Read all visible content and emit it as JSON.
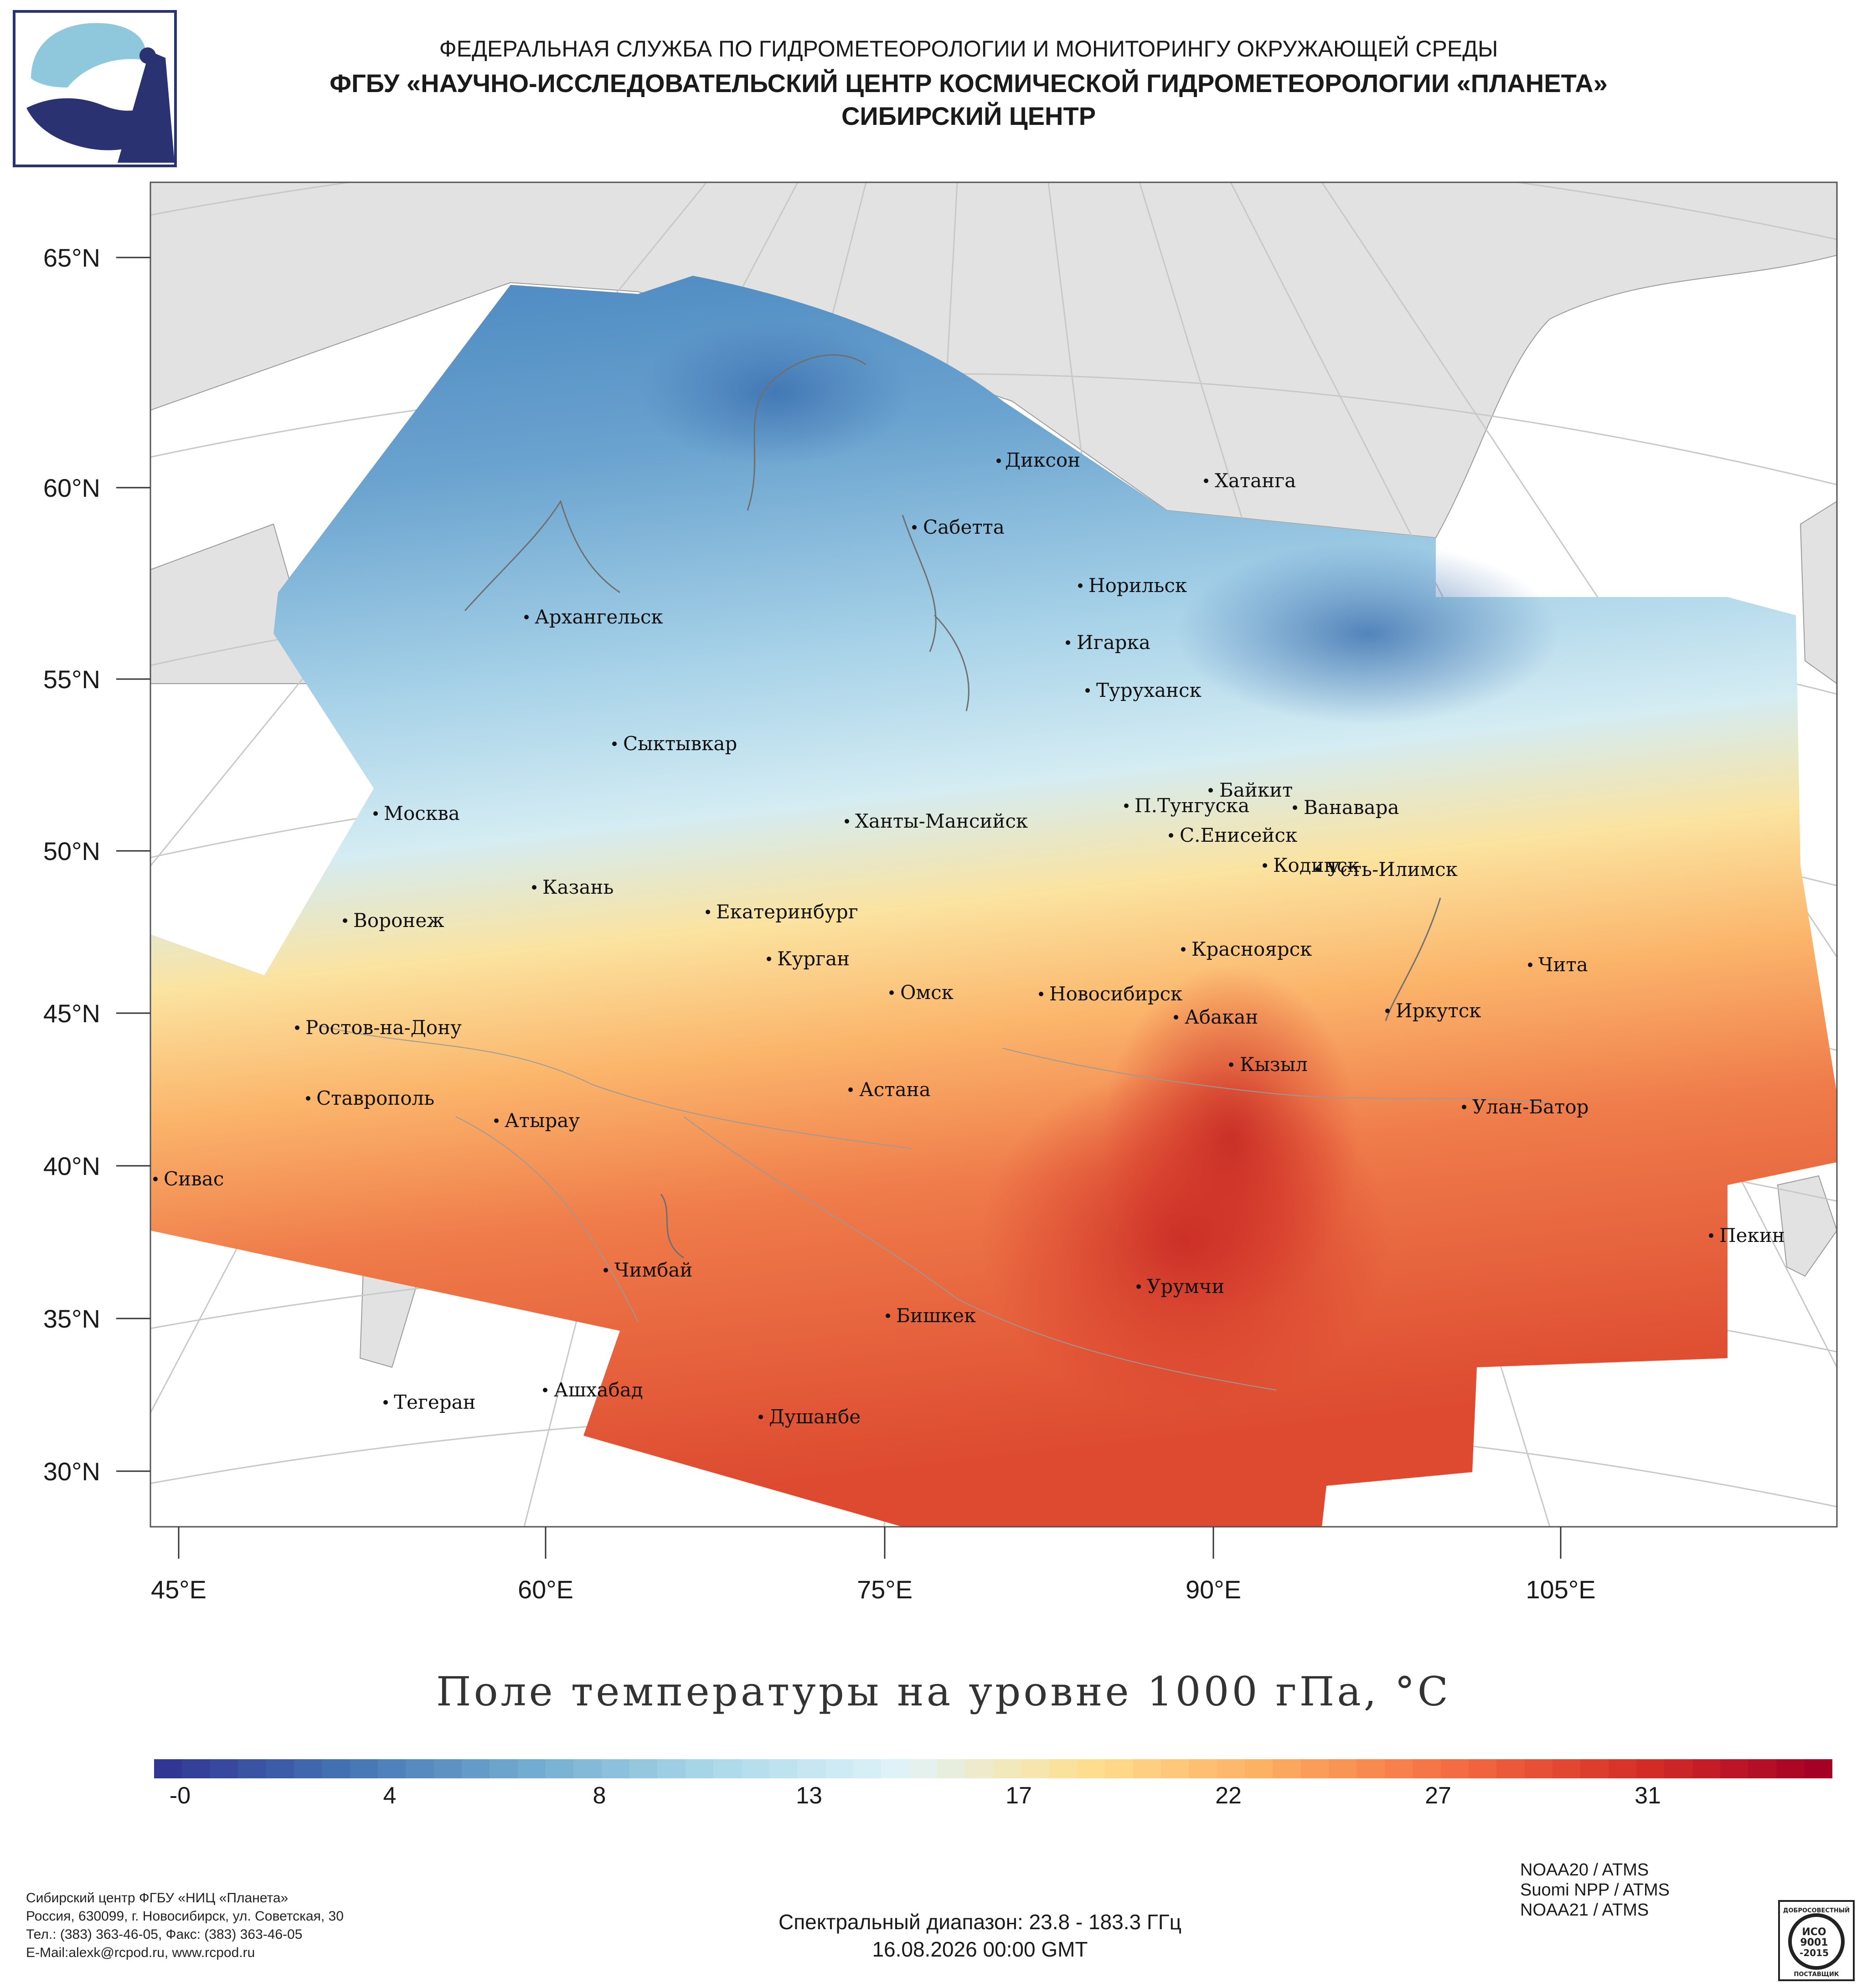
{
  "header": {
    "line1": "ФЕДЕРАЛЬНАЯ СЛУЖБА ПО ГИДРОМЕТЕОРОЛОГИИ И МОНИТОРИНГУ ОКРУЖАЮЩЕЙ СРЕДЫ",
    "line2": "ФГБУ «НАУЧНО-ИССЛЕДОВАТЕЛЬСКИЙ ЦЕНТР КОСМИЧЕСКОЙ ГИДРОМЕТЕОРОЛОГИИ «ПЛАНЕТА»",
    "line3": "СИБИРСКИЙ ЦЕНТР"
  },
  "map": {
    "title": "Поле температуры на уровне 1000 гПа, °C",
    "lat_labels": [
      "65°N",
      "60°N",
      "55°N",
      "50°N",
      "45°N",
      "40°N",
      "35°N",
      "30°N"
    ],
    "lon_labels": [
      "45°E",
      "60°E",
      "75°E",
      "90°E",
      "105°E"
    ],
    "cities": [
      {
        "name": "Диксон"
      },
      {
        "name": "Хатанга"
      },
      {
        "name": "Сабетта"
      },
      {
        "name": "Норильск"
      },
      {
        "name": "Архангельск"
      },
      {
        "name": "Игарка"
      },
      {
        "name": "Туруханск"
      },
      {
        "name": "Сыктывкар"
      },
      {
        "name": "Байкит"
      },
      {
        "name": "П.Тунгуска"
      },
      {
        "name": "Ванавара"
      },
      {
        "name": "Москва"
      },
      {
        "name": "Ханты-Мансийск"
      },
      {
        "name": "С.Енисейск"
      },
      {
        "name": "Казань"
      },
      {
        "name": "Кодинск"
      },
      {
        "name": "Усть-Илимск"
      },
      {
        "name": "Екатеринбург"
      },
      {
        "name": "Воронеж"
      },
      {
        "name": "Красноярск"
      },
      {
        "name": "Курган"
      },
      {
        "name": "Чита"
      },
      {
        "name": "Омск"
      },
      {
        "name": "Новосибирск"
      },
      {
        "name": "Иркутск"
      },
      {
        "name": "Абакан"
      },
      {
        "name": "Ростов-на-Дону"
      },
      {
        "name": "Кызыл"
      },
      {
        "name": "Ставрополь"
      },
      {
        "name": "Астана"
      },
      {
        "name": "Улан-Батор"
      },
      {
        "name": "Атырау"
      },
      {
        "name": "Сивас"
      },
      {
        "name": "Пекин"
      },
      {
        "name": "Чимбай"
      },
      {
        "name": "Урумчи"
      },
      {
        "name": "Бишкек"
      },
      {
        "name": "Ашхабад"
      },
      {
        "name": "Тегеран"
      },
      {
        "name": "Душанбе"
      }
    ]
  },
  "colorbar": {
    "ticks": [
      "-0",
      "4",
      "8",
      "13",
      "17",
      "22",
      "27",
      "31"
    ],
    "min": -0.5,
    "max": 34.5,
    "colors": [
      "#313695",
      "#4575b4",
      "#74add1",
      "#abd9e9",
      "#e0f3f8",
      "#fee090",
      "#fdae61",
      "#f46d43",
      "#d73027",
      "#a50026"
    ]
  },
  "footer": {
    "org_lines": [
      "Сибирский центр ФГБУ «НИЦ «Планета»",
      "Россия, 630099, г. Новосибирск, ул. Советская, 30",
      "Тел.: (383) 363-46-05, Факс: (383) 363-46-05",
      "E-Mail:alexk@rcpod.ru, www.rcpod.ru"
    ],
    "spectral": "Спектральный диапазон: 23.8 - 183.3 ГГц",
    "datetime": "16.08.2026 00:00 GMT",
    "instruments": [
      "NOAA20 / ATMS",
      "Suomi NPP / ATMS",
      "NOAA21 / ATMS"
    ],
    "iso_badge": {
      "top": "ДОБРОСОВЕСТНЫЙ",
      "l1": "ИСО",
      "l2": "9001",
      "l3": "-2015",
      "bottom": "ПОСТАВЩИК"
    }
  }
}
